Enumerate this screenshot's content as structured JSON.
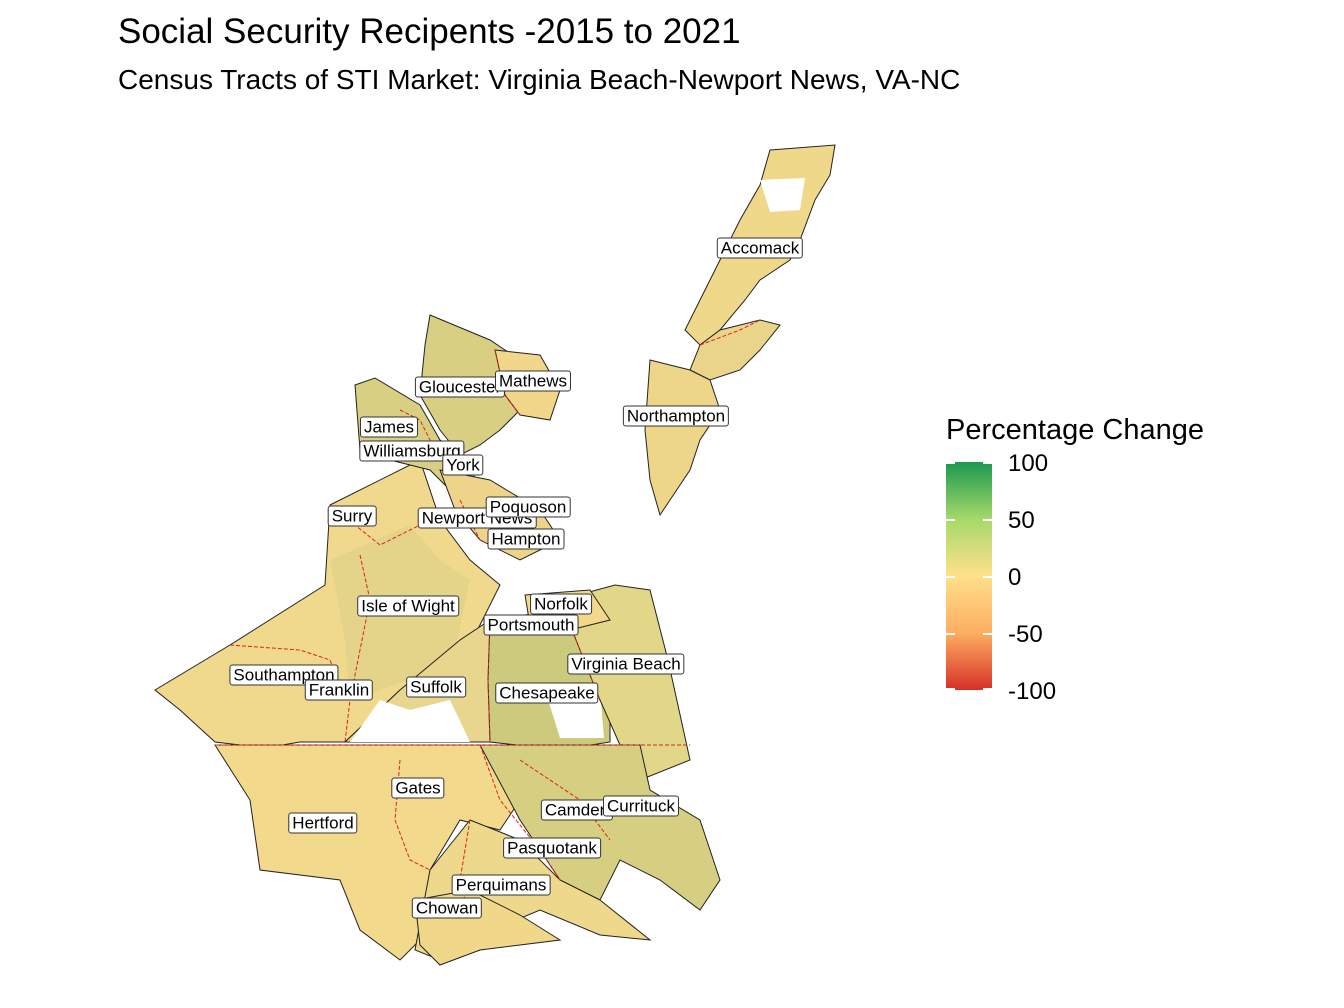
{
  "title": "Social Security Recipents -2015 to 2021",
  "subtitle": "Census Tracts of STI Market: Virginia Beach-Newport News, VA-NC",
  "legend": {
    "title": "Percentage Change",
    "ticks": [
      "100",
      "50",
      "0",
      "-50",
      "-100"
    ],
    "scale_min": -100,
    "scale_max": 100,
    "colors": [
      "#d73027",
      "#fdae61",
      "#fee08b",
      "#a6d96a",
      "#1a9850"
    ]
  },
  "county_labels": [
    "Accomack",
    "Northampton",
    "Gloucester",
    "Mathews",
    "James",
    "Williamsburg",
    "York",
    "Surry",
    "Newport News",
    "Poquoson",
    "Hampton",
    "Isle of Wight",
    "Norfolk",
    "Portsmouth",
    "Virginia Beach",
    "Southampton",
    "Franklin",
    "Suffolk",
    "Chesapeake",
    "Gates",
    "Camden",
    "Currituck",
    "Hertford",
    "Pasquotank",
    "Perquimans",
    "Chowan"
  ]
}
